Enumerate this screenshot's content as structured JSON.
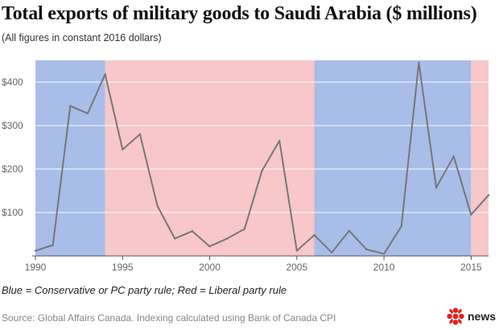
{
  "colors": {
    "conservative": "#a8bde8",
    "liberal": "#f7c7ca",
    "line": "#777777",
    "grid": "#ffffff",
    "axis": "#555555",
    "brand": "#e02020"
  },
  "footer": {
    "legend_note": "Blue = Conservative or PC party rule; Red = Liberal party rule",
    "source": "Source: Global Affairs Canada. Indexing calculated using Bank of Canada CPI",
    "brand_label": "news"
  },
  "chart_data": {
    "type": "line",
    "title": "Total exports of military goods to Saudi Arabia ($ millions)",
    "subtitle": "(All figures in constant 2016 dollars)",
    "xlabel": "",
    "ylabel": "",
    "xlim": [
      1990,
      2016
    ],
    "ylim": [
      0,
      450
    ],
    "x_ticks": [
      1990,
      1995,
      2000,
      2005,
      2010,
      2015
    ],
    "x_tick_labels": [
      "1990",
      "1995",
      "2000",
      "2005",
      "2010",
      "2015"
    ],
    "y_ticks": [
      100,
      200,
      300,
      400
    ],
    "y_tick_labels": [
      "$100",
      "$200",
      "$300",
      "$400"
    ],
    "grid": true,
    "bands": [
      {
        "party": "Conservative or PC",
        "start": 1990,
        "end": 1994,
        "color_key": "conservative"
      },
      {
        "party": "Liberal",
        "start": 1994,
        "end": 2006,
        "color_key": "liberal"
      },
      {
        "party": "Conservative or PC",
        "start": 2006,
        "end": 2015,
        "color_key": "conservative"
      },
      {
        "party": "Liberal",
        "start": 2015,
        "end": 2016,
        "color_key": "liberal"
      }
    ],
    "series": [
      {
        "name": "Total exports of military goods",
        "x": [
          1990,
          1991,
          1992,
          1993,
          1994,
          1995,
          1996,
          1997,
          1998,
          1999,
          2000,
          2001,
          2002,
          2003,
          2004,
          2005,
          2006,
          2007,
          2008,
          2009,
          2010,
          2011,
          2012,
          2013,
          2014,
          2015,
          2016
        ],
        "values": [
          12,
          25,
          345,
          328,
          418,
          245,
          280,
          115,
          40,
          57,
          22,
          40,
          62,
          196,
          265,
          12,
          48,
          8,
          58,
          15,
          5,
          68,
          445,
          157,
          229,
          95,
          140
        ]
      }
    ]
  }
}
